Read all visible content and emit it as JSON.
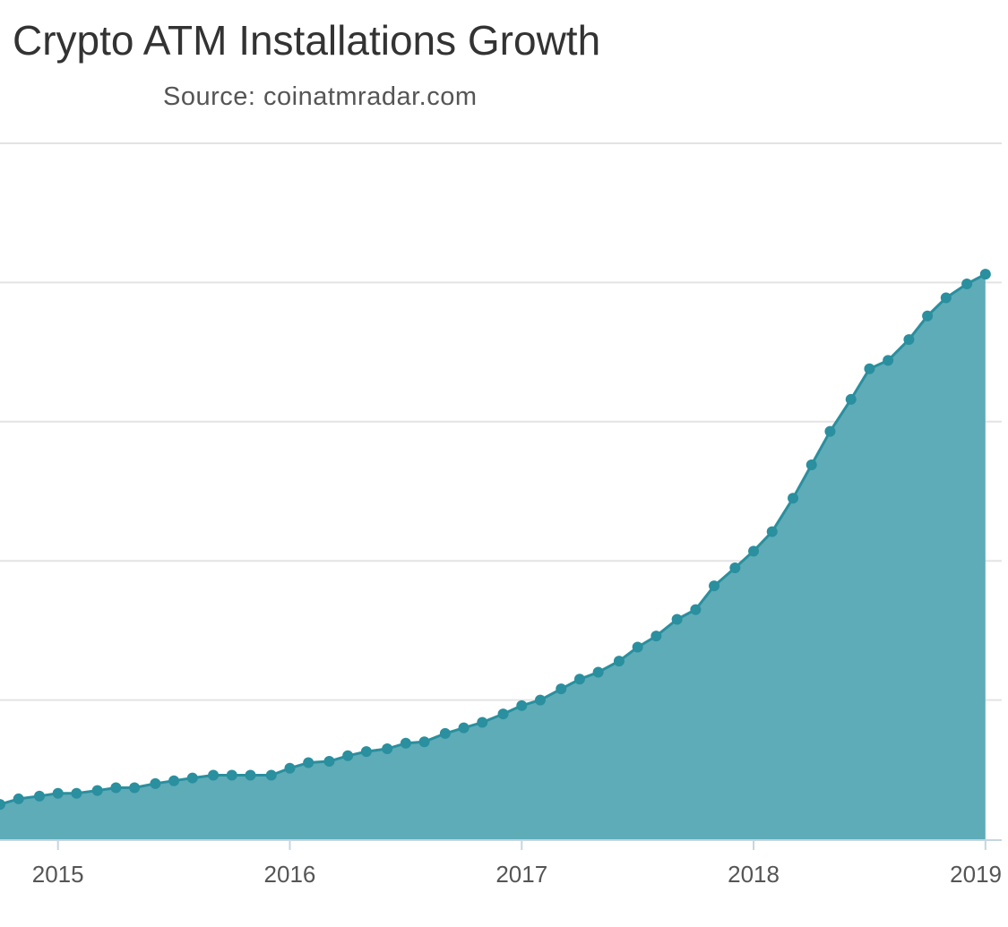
{
  "chart_data": {
    "type": "area",
    "title": "Crypto ATM Installations Growth",
    "subtitle": "Source: coinatmradar.com",
    "xlabel": "",
    "ylabel": "",
    "grid": true,
    "legend": "none",
    "x_ticks": [
      2015,
      2016,
      2017,
      2018,
      2019
    ],
    "xlim": [
      2014.75,
      2019.02
    ],
    "ylim": [
      0,
      5
    ],
    "color": "#2a8f9e",
    "fill_color": "#5eacb8",
    "series": [
      {
        "x": [
          2014.75,
          2014.83,
          2014.92,
          2015.0,
          2015.08,
          2015.17,
          2015.25,
          2015.33,
          2015.42,
          2015.5,
          2015.58,
          2015.67,
          2015.75,
          2015.83,
          2015.92,
          2016.0,
          2016.08,
          2016.17,
          2016.25,
          2016.33,
          2016.42,
          2016.5,
          2016.58,
          2016.67,
          2016.75,
          2016.83,
          2016.92,
          2017.0,
          2017.08,
          2017.17,
          2017.25,
          2017.33,
          2017.42,
          2017.5,
          2017.58,
          2017.67,
          2017.75,
          2017.83,
          2017.92,
          2018.0,
          2018.08,
          2018.17,
          2018.25,
          2018.33,
          2018.42,
          2018.5,
          2018.58,
          2018.67,
          2018.75,
          2018.83,
          2018.92,
          2019.0
        ],
        "y": [
          0.25,
          0.29,
          0.31,
          0.33,
          0.33,
          0.35,
          0.37,
          0.37,
          0.4,
          0.42,
          0.44,
          0.46,
          0.46,
          0.46,
          0.46,
          0.51,
          0.55,
          0.56,
          0.6,
          0.63,
          0.65,
          0.69,
          0.7,
          0.76,
          0.8,
          0.84,
          0.9,
          0.96,
          1.0,
          1.08,
          1.15,
          1.2,
          1.28,
          1.38,
          1.46,
          1.58,
          1.65,
          1.82,
          1.95,
          2.07,
          2.21,
          2.45,
          2.69,
          2.93,
          3.16,
          3.38,
          3.44,
          3.59,
          3.76,
          3.89,
          3.99,
          4.06
        ]
      }
    ]
  }
}
